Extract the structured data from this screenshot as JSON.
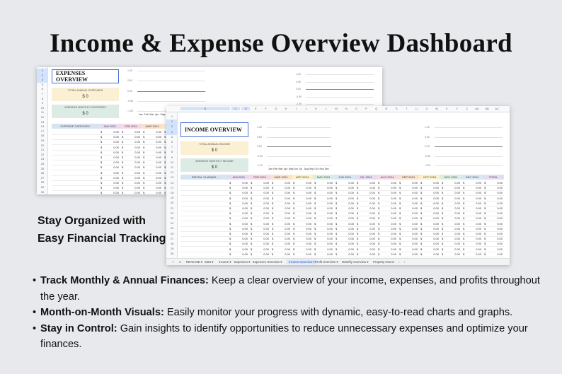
{
  "title": "Income & Expense Overview Dashboard",
  "colors": {
    "background": "#e7e9ec",
    "accent_selection": "#4a6fd1"
  },
  "expenses_sheet": {
    "title": "EXPENSES OVERVIEW",
    "kpis": [
      {
        "label": "TOTAL ANNUAL EXPENSES",
        "value": "$ 0",
        "color": "#fbf0d4"
      },
      {
        "label": "AVERAGE MONTHLY EXPENSES",
        "value": "$ 0",
        "color": "#dcece4"
      }
    ],
    "row_numbers": [
      "2",
      "3",
      "4",
      "5",
      "6",
      "7",
      "8",
      "9",
      "10",
      "11",
      "12",
      "13",
      "14",
      "17",
      "18",
      "19",
      "20",
      "21",
      "22",
      "23",
      "24",
      "25",
      "26",
      "27",
      "28",
      "29",
      "30"
    ],
    "chart": {
      "yticks": [
        "1.00",
        "0.50",
        "0.00",
        "-0.50",
        "-1.00"
      ],
      "months": [
        "Jan",
        "Feb",
        "Mar",
        "Apr",
        "May",
        "Ju"
      ]
    },
    "table": {
      "headers": [
        "EXPENSE CATEGORY",
        "JAN 2024",
        "FEB 2024",
        "MAR 2024",
        "A"
      ],
      "currency": "$",
      "cell_value": "0.00"
    }
  },
  "income_sheet": {
    "title": "INCOME OVERVIEW",
    "columns": [
      "A",
      "B",
      "C",
      "D",
      "E",
      "F",
      "G",
      "H",
      "I",
      "J",
      "K",
      "L",
      "M",
      "N",
      "O",
      "P",
      "Q",
      "R",
      "S",
      "T",
      "U",
      "V",
      "W",
      "X",
      "Y",
      "Z",
      "AA",
      "AB",
      "AC"
    ],
    "row_numbers": [
      "1",
      "2",
      "3",
      "4",
      "5",
      "6",
      "7",
      "8",
      "9",
      "10",
      "11",
      "12",
      "13",
      "14",
      "17",
      "18",
      "19",
      "20",
      "21",
      "22",
      "23",
      "24",
      "25",
      "26",
      "27",
      "28",
      "29",
      "30",
      "31"
    ],
    "kpis": [
      {
        "label": "TOTAL ANNUAL INCOME",
        "value": "$ 0",
        "color": "#fbf0d4"
      },
      {
        "label": "AVERAGE MONTHLY INCOME",
        "value": "$ 0",
        "color": "#dcece4"
      }
    ],
    "chart1": {
      "yticks": [
        "1.00",
        "0.50",
        "0.00",
        "-0.50",
        "-1.00"
      ],
      "months": [
        "Jan",
        "Feb",
        "Mar",
        "Apr",
        "May",
        "Jun",
        "Jul",
        "Aug",
        "Sep",
        "Oct",
        "Nov",
        "Dec"
      ]
    },
    "chart2": {
      "yticks": [
        "1.00",
        "0.50",
        "0.00",
        "-0.50",
        "-1.00"
      ]
    },
    "table": {
      "headers": [
        "RENTAL CHANNEL",
        "JAN 2024",
        "FEB 2024",
        "MAR 2024",
        "APR 2024",
        "MAY 2024",
        "JUN 2024",
        "JUL 2024",
        "AUG 2024",
        "SEP 2024",
        "OCT 2024",
        "NOV 2024",
        "DEC 2024",
        "TOTAL"
      ],
      "header_colors": [
        "#d6e4f2",
        "#e6dcf2",
        "#f6d9e6",
        "#f9e0cf",
        "#fbf0c9",
        "#d9eee0",
        "#d8e7f5",
        "#e6dcf2",
        "#f6d9e6",
        "#f9e0cf",
        "#fbf0c9",
        "#d9eee0",
        "#d8e7f5",
        "#e6dcf2"
      ],
      "currency": "$",
      "cell_value": "0.00"
    },
    "tabs": [
      "+",
      "≡",
      "READ ME ▾",
      "Start ▾",
      "Income ▾",
      "Expenses ▾",
      "Expenses Overview ▾",
      "Income Overview ▾",
      "Profit Overview ▾",
      "Monthly Overview ▾",
      "Property Overvi",
      "‹",
      "›"
    ],
    "active_tab": 7
  },
  "left_heading": "Stay Organized with Easy Financial Tracking",
  "bullets": [
    {
      "bold": "Track Monthly & Annual Finances:",
      "text": " Keep a clear overview of your income, expenses, and profits throughout the year."
    },
    {
      "bold": "Month-on-Month Visuals:",
      "text": " Easily monitor your progress with dynamic, easy-to-read charts and graphs."
    },
    {
      "bold": "Stay in Control:",
      "text": " Gain insights to identify opportunities to reduce unnecessary expenses and optimize your finances."
    }
  ]
}
